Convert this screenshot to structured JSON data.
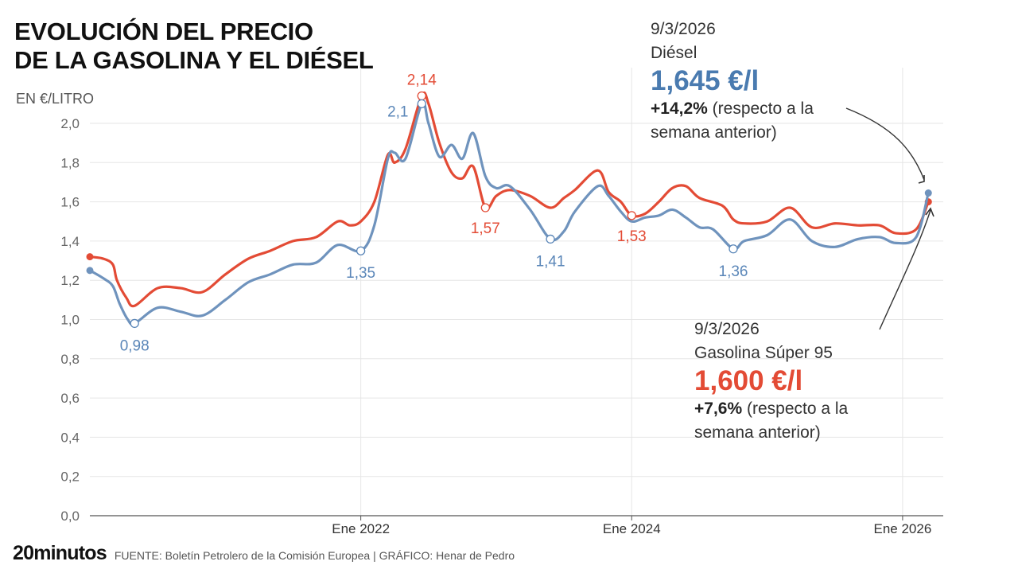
{
  "header": {
    "title_line1": "EVOLUCIÓN DEL PRECIO",
    "title_line2": "DE LA GASOLINA Y EL DIÉSEL",
    "unit": "EN €/LITRO"
  },
  "callouts": {
    "diesel": {
      "date": "9/3/2026",
      "name": "Diésel",
      "price": "1,645 €/l",
      "change": "+14,2%",
      "change_note_1": " (respecto a la",
      "change_note_2": "semana anterior)"
    },
    "gasoline": {
      "date": "9/3/2026",
      "name": "Gasolina Súper 95",
      "price": "1,600 €/l",
      "change": "+7,6%",
      "change_note_1": " (respecto a la",
      "change_note_2": "semana anterior)"
    }
  },
  "footer": {
    "logo": "20minutos",
    "source": "FUENTE: Boletín Petrolero de la Comisión Europea  |  GRÁFICO: Henar de Pedro"
  },
  "colors": {
    "gasoline": "#e34b35",
    "diesel": "#6f93bd",
    "grid": "#e6e6e6",
    "axis": "#555555"
  },
  "chart_data": {
    "type": "line",
    "title": "EVOLUCIÓN DEL PRECIO DE LA GASOLINA Y EL DIÉSEL",
    "ylabel": "EN €/LITRO",
    "xlim": [
      2020.0,
      2026.3
    ],
    "ylim": [
      0,
      2.0
    ],
    "yticks": [
      0,
      0.2,
      0.4,
      0.6,
      0.8,
      1.0,
      1.2,
      1.4,
      1.6,
      1.8,
      2.0
    ],
    "ytick_labels": [
      "0,0",
      "0,2",
      "0,4",
      "0,6",
      "0,8",
      "1,0",
      "1,2",
      "1,4",
      "1,6",
      "1,8",
      "2,0"
    ],
    "xticks": [
      2022,
      2024,
      2026
    ],
    "xtick_labels": [
      "Ene 2022",
      "Ene 2024",
      "Ene 2026"
    ],
    "grid": true,
    "series": [
      {
        "name": "Gasolina Súper 95",
        "points": [
          [
            2020.0,
            1.32
          ],
          [
            2020.1,
            1.31
          ],
          [
            2020.17,
            1.28
          ],
          [
            2020.2,
            1.2
          ],
          [
            2020.27,
            1.11
          ],
          [
            2020.33,
            1.07
          ],
          [
            2020.5,
            1.16
          ],
          [
            2020.67,
            1.16
          ],
          [
            2020.83,
            1.14
          ],
          [
            2021.0,
            1.23
          ],
          [
            2021.17,
            1.31
          ],
          [
            2021.33,
            1.35
          ],
          [
            2021.5,
            1.4
          ],
          [
            2021.67,
            1.42
          ],
          [
            2021.83,
            1.5
          ],
          [
            2021.92,
            1.48
          ],
          [
            2022.0,
            1.5
          ],
          [
            2022.1,
            1.6
          ],
          [
            2022.2,
            1.84
          ],
          [
            2022.25,
            1.8
          ],
          [
            2022.33,
            1.87
          ],
          [
            2022.45,
            2.14
          ],
          [
            2022.5,
            2.1
          ],
          [
            2022.58,
            1.9
          ],
          [
            2022.67,
            1.75
          ],
          [
            2022.75,
            1.72
          ],
          [
            2022.83,
            1.78
          ],
          [
            2022.92,
            1.57
          ],
          [
            2023.0,
            1.63
          ],
          [
            2023.1,
            1.66
          ],
          [
            2023.25,
            1.63
          ],
          [
            2023.4,
            1.57
          ],
          [
            2023.5,
            1.62
          ],
          [
            2023.58,
            1.66
          ],
          [
            2023.75,
            1.76
          ],
          [
            2023.83,
            1.65
          ],
          [
            2023.92,
            1.6
          ],
          [
            2024.0,
            1.53
          ],
          [
            2024.1,
            1.54
          ],
          [
            2024.2,
            1.6
          ],
          [
            2024.3,
            1.67
          ],
          [
            2024.4,
            1.68
          ],
          [
            2024.5,
            1.62
          ],
          [
            2024.67,
            1.58
          ],
          [
            2024.75,
            1.51
          ],
          [
            2024.83,
            1.49
          ],
          [
            2025.0,
            1.5
          ],
          [
            2025.17,
            1.57
          ],
          [
            2025.33,
            1.47
          ],
          [
            2025.5,
            1.49
          ],
          [
            2025.67,
            1.48
          ],
          [
            2025.83,
            1.48
          ],
          [
            2025.95,
            1.44
          ],
          [
            2026.1,
            1.46
          ],
          [
            2026.19,
            1.6
          ]
        ]
      },
      {
        "name": "Diésel",
        "points": [
          [
            2020.0,
            1.25
          ],
          [
            2020.1,
            1.21
          ],
          [
            2020.17,
            1.17
          ],
          [
            2020.22,
            1.08
          ],
          [
            2020.28,
            1.0
          ],
          [
            2020.33,
            0.98
          ],
          [
            2020.5,
            1.06
          ],
          [
            2020.67,
            1.04
          ],
          [
            2020.83,
            1.02
          ],
          [
            2021.0,
            1.1
          ],
          [
            2021.17,
            1.19
          ],
          [
            2021.33,
            1.23
          ],
          [
            2021.5,
            1.28
          ],
          [
            2021.67,
            1.29
          ],
          [
            2021.83,
            1.38
          ],
          [
            2022.0,
            1.35
          ],
          [
            2022.1,
            1.48
          ],
          [
            2022.2,
            1.82
          ],
          [
            2022.25,
            1.85
          ],
          [
            2022.33,
            1.82
          ],
          [
            2022.45,
            2.1
          ],
          [
            2022.5,
            2.0
          ],
          [
            2022.58,
            1.83
          ],
          [
            2022.67,
            1.89
          ],
          [
            2022.75,
            1.82
          ],
          [
            2022.83,
            1.95
          ],
          [
            2022.92,
            1.73
          ],
          [
            2023.0,
            1.67
          ],
          [
            2023.1,
            1.68
          ],
          [
            2023.25,
            1.56
          ],
          [
            2023.4,
            1.41
          ],
          [
            2023.5,
            1.45
          ],
          [
            2023.58,
            1.55
          ],
          [
            2023.75,
            1.68
          ],
          [
            2023.83,
            1.63
          ],
          [
            2023.92,
            1.55
          ],
          [
            2024.0,
            1.5
          ],
          [
            2024.1,
            1.52
          ],
          [
            2024.2,
            1.53
          ],
          [
            2024.3,
            1.56
          ],
          [
            2024.4,
            1.52
          ],
          [
            2024.5,
            1.47
          ],
          [
            2024.6,
            1.46
          ],
          [
            2024.75,
            1.36
          ],
          [
            2024.83,
            1.4
          ],
          [
            2025.0,
            1.43
          ],
          [
            2025.17,
            1.51
          ],
          [
            2025.33,
            1.4
          ],
          [
            2025.5,
            1.37
          ],
          [
            2025.67,
            1.41
          ],
          [
            2025.83,
            1.42
          ],
          [
            2025.95,
            1.39
          ],
          [
            2026.1,
            1.42
          ],
          [
            2026.19,
            1.645
          ]
        ]
      }
    ],
    "annotations": [
      {
        "series": "Gasolina Súper 95",
        "x": 2022.45,
        "y": 2.14,
        "label": "2,14"
      },
      {
        "series": "Gasolina Súper 95",
        "x": 2022.92,
        "y": 1.57,
        "label": "1,57"
      },
      {
        "series": "Gasolina Súper 95",
        "x": 2024.0,
        "y": 1.53,
        "label": "1,53"
      },
      {
        "series": "Diésel",
        "x": 2020.33,
        "y": 0.98,
        "label": "0,98"
      },
      {
        "series": "Diésel",
        "x": 2022.0,
        "y": 1.35,
        "label": "1,35"
      },
      {
        "series": "Diésel",
        "x": 2022.45,
        "y": 2.1,
        "label": "2,1"
      },
      {
        "series": "Diésel",
        "x": 2023.4,
        "y": 1.41,
        "label": "1,41"
      },
      {
        "series": "Diésel",
        "x": 2024.75,
        "y": 1.36,
        "label": "1,36"
      }
    ]
  }
}
